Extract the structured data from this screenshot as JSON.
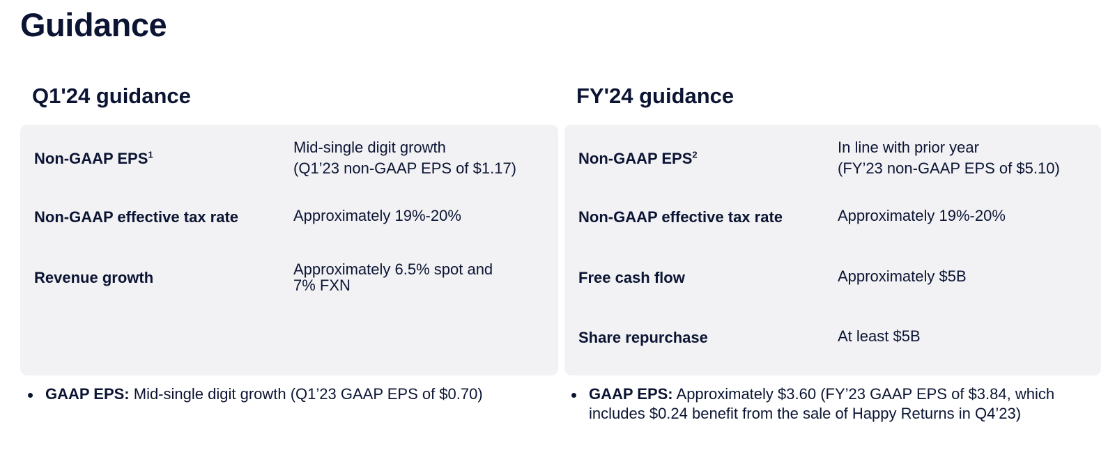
{
  "page": {
    "title": "Guidance"
  },
  "q1": {
    "title": "Q1'24 guidance",
    "rows": [
      {
        "label": "Non-GAAP EPS",
        "note": "1",
        "value_lines": [
          "Mid-single digit growth",
          "(Q1’23 non-GAAP EPS of $1.17)"
        ]
      },
      {
        "label": "Non-GAAP effective tax rate",
        "value_lines": [
          "Approximately 19%-20%"
        ]
      },
      {
        "label": "Revenue growth",
        "value_lines": [
          "Approximately 6.5% spot and",
          "7% FXN"
        ]
      }
    ],
    "bullet": {
      "label": "GAAP EPS:",
      "text": " Mid-single digit growth (Q1’23 GAAP EPS of $0.70)"
    }
  },
  "fy": {
    "title": "FY'24 guidance",
    "rows": [
      {
        "label": "Non-GAAP EPS",
        "note": "2",
        "value_lines": [
          "In line with prior year",
          "(FY’23 non-GAAP EPS of $5.10)"
        ]
      },
      {
        "label": "Non-GAAP effective tax rate",
        "value_lines": [
          "Approximately 19%-20%"
        ]
      },
      {
        "label": "Free cash flow",
        "value_lines": [
          "Approximately $5B"
        ]
      },
      {
        "label": "Share repurchase",
        "value_lines": [
          "At least $5B"
        ]
      }
    ],
    "bullet": {
      "label": "GAAP EPS:",
      "text": " Approximately $3.60 (FY’23 GAAP EPS of $3.84, which includes $0.24 benefit from the sale of Happy Returns in Q4’23)"
    }
  }
}
